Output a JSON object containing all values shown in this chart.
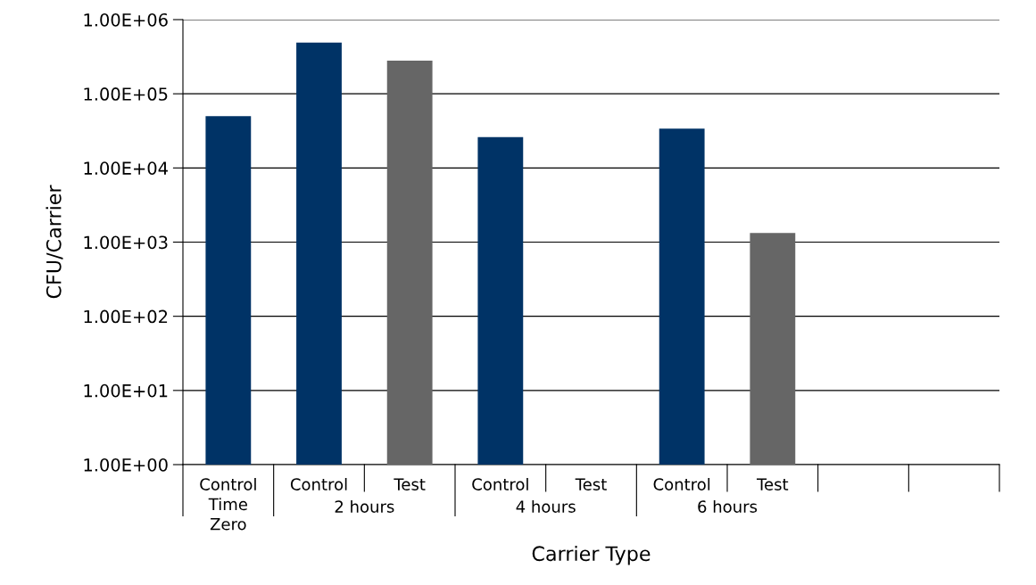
{
  "chart_data": {
    "type": "bar",
    "xlabel": "Carrier Type",
    "ylabel": "CFU/Carrier",
    "categories": [
      "Control\nTime\nZero",
      "Control",
      "Test",
      "Control",
      "Test",
      "Control",
      "Test",
      null,
      null
    ],
    "values": [
      50000,
      490000,
      280000,
      26000,
      null,
      34000,
      1330,
      null,
      null
    ],
    "colors": [
      "#003366",
      "#003366",
      "#666666",
      "#003366",
      "#666666",
      "#003366",
      "#666666",
      "#666666",
      "#666666"
    ],
    "annotations": [
      "2 hours",
      "4 hours",
      "6 hours"
    ],
    "log": true,
    "ylim": [
      1,
      1000000
    ],
    "yticks": [
      {
        "value": 1,
        "label": "1.00E+00"
      },
      {
        "value": 10,
        "label": "1.00E+01"
      },
      {
        "value": 100,
        "label": "1.00E+02"
      },
      {
        "value": 1000,
        "label": "1.00E+03"
      },
      {
        "value": 10000,
        "label": "1.00E+04"
      },
      {
        "value": 100000,
        "label": "1.00E+05"
      },
      {
        "value": 1000000,
        "label": "1.00E+06"
      }
    ],
    "grid": "y",
    "legend": false
  }
}
